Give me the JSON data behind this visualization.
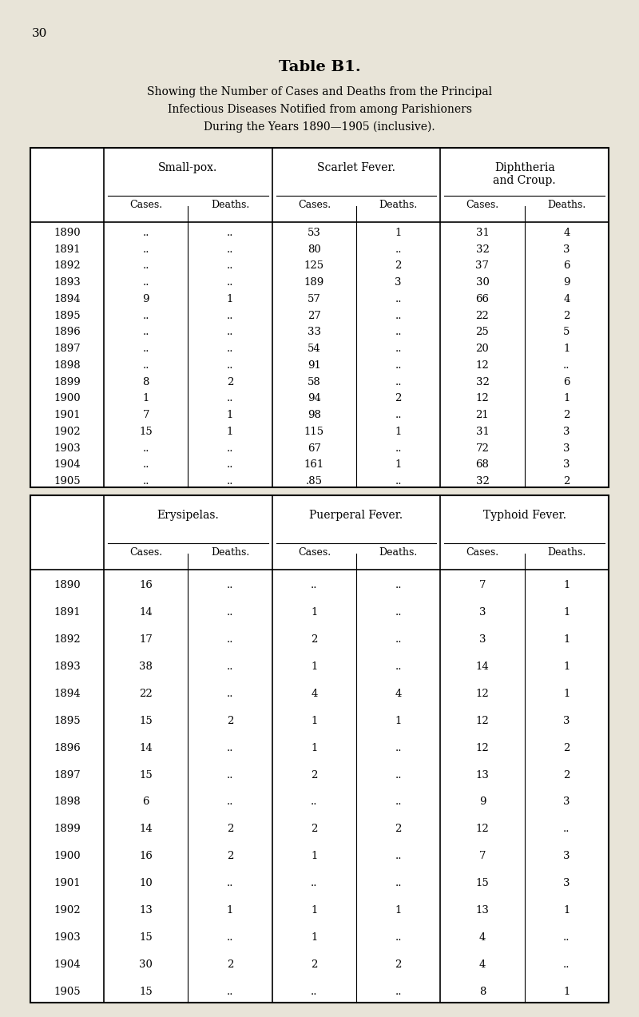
{
  "page_number": "30",
  "title": "Table B1.",
  "subtitle_lines": [
    "Showing the Number of Cases and Deaths from the Principal",
    "Infectious Diseases Notified from among Parishioners",
    "During the Years 1890—1905 (inclusive)."
  ],
  "bg_color": "#e8e4d8",
  "years": [
    1890,
    1891,
    1892,
    1893,
    1894,
    1895,
    1896,
    1897,
    1898,
    1899,
    1900,
    1901,
    1902,
    1903,
    1904,
    1905
  ],
  "table1": {
    "col_groups": [
      "Small-pox.",
      "Scarlet Fever.",
      "Diphtheria\nand Croup."
    ],
    "sub_cols": [
      "Cases.",
      "Deaths.",
      "Cases.",
      "Deaths.",
      "Cases.",
      "Deaths."
    ],
    "data": [
      [
        "..",
        "..",
        "53",
        "1",
        "31",
        "4"
      ],
      [
        "..",
        "..",
        "80",
        "..",
        "32",
        "3"
      ],
      [
        "..",
        "..",
        "125",
        "2",
        "37",
        "6"
      ],
      [
        "..",
        "..",
        "189",
        "3",
        "30",
        "9"
      ],
      [
        "9",
        "1",
        "57",
        "..",
        "66",
        "4"
      ],
      [
        "..",
        "..",
        "27",
        "..",
        "22",
        "2"
      ],
      [
        "..",
        "..",
        "33",
        "..",
        "25",
        "5"
      ],
      [
        "..",
        "..",
        "54",
        "..",
        "20",
        "1"
      ],
      [
        "..",
        "..",
        "91",
        "..",
        "12",
        ".."
      ],
      [
        "8",
        "2",
        "58",
        "..",
        "32",
        "6"
      ],
      [
        "1",
        "..",
        "94",
        "2",
        "12",
        "1"
      ],
      [
        "7",
        "1",
        "98",
        "..",
        "21",
        "2"
      ],
      [
        "15",
        "1",
        "115",
        "1",
        "31",
        "3"
      ],
      [
        "..",
        "..",
        "67",
        "..",
        "72",
        "3"
      ],
      [
        "..",
        "..",
        "161",
        "1",
        "68",
        "3"
      ],
      [
        "..",
        "..",
        ".85",
        "..",
        "32",
        "2"
      ]
    ]
  },
  "table2": {
    "col_groups": [
      "Erysipelas.",
      "Puerperal Fever.",
      "Typhoid Fever."
    ],
    "sub_cols": [
      "Cases.",
      "Deaths.",
      "Cases.",
      "Deaths.",
      "Cases.",
      "Deaths."
    ],
    "data": [
      [
        "16",
        "..",
        "..",
        "..",
        "7",
        "1"
      ],
      [
        "14",
        "..",
        "1",
        "..",
        "3",
        "1"
      ],
      [
        "17",
        "..",
        "2",
        "..",
        "3",
        "1"
      ],
      [
        "38",
        "..",
        "1",
        "..",
        "14",
        "1"
      ],
      [
        "22",
        "..",
        "4",
        "4",
        "12",
        "1"
      ],
      [
        "15",
        "2",
        "1",
        "1",
        "12",
        "3"
      ],
      [
        "14",
        "..",
        "1",
        "..",
        "12",
        "2"
      ],
      [
        "15",
        "..",
        "2",
        "..",
        "13",
        "2"
      ],
      [
        "6",
        "..",
        "..",
        "..",
        "9",
        "3"
      ],
      [
        "14",
        "2",
        "2",
        "2",
        "12",
        ".."
      ],
      [
        "16",
        "2",
        "1",
        "..",
        "7",
        "3"
      ],
      [
        "10",
        "..",
        "..",
        "..",
        "15",
        "3"
      ],
      [
        "13",
        "1",
        "1",
        "1",
        "13",
        "1"
      ],
      [
        "15",
        "..",
        "1",
        "..",
        "4",
        ".."
      ],
      [
        "30",
        "2",
        "2",
        "2",
        "4",
        ".."
      ],
      [
        "15",
        "..",
        "..",
        "..",
        "8",
        "1"
      ]
    ]
  }
}
